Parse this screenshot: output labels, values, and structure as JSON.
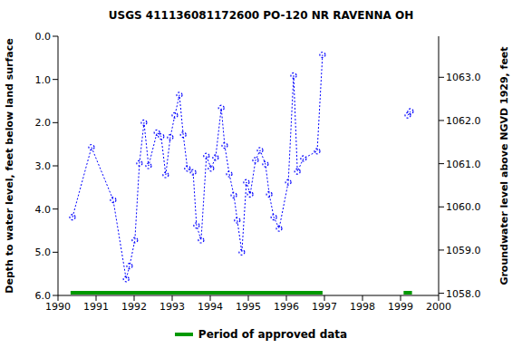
{
  "chart_data": {
    "type": "line",
    "title": "USGS 411136081172600 PO-120 NR RAVENNA OH",
    "y_label": "Depth to water level, feet below land surface",
    "y2_label": "Groundwater level above NGVD 1929, feet",
    "x": [
      1990.38,
      1990.88,
      1991.45,
      1991.79,
      1991.88,
      1992.02,
      1992.14,
      1992.26,
      1992.38,
      1992.6,
      1992.71,
      1992.83,
      1992.95,
      1993.07,
      1993.19,
      1993.29,
      1993.4,
      1993.55,
      1993.64,
      1993.76,
      1993.9,
      1994.02,
      1994.14,
      1994.29,
      1994.38,
      1994.5,
      1994.62,
      1994.71,
      1994.83,
      1994.95,
      1995.05,
      1995.19,
      1995.31,
      1995.45,
      1995.55,
      1995.67,
      1995.81,
      1996.05,
      1996.19,
      1996.29,
      1996.45,
      1996.81,
      1996.95,
      1998.0,
      1999.19,
      1999.26
    ],
    "series": [
      {
        "color": "#0000ff",
        "marker": "circle",
        "line_style": "dotted",
        "values": [
          4.19,
          2.57,
          3.79,
          5.62,
          5.32,
          4.72,
          2.94,
          2.0,
          3.0,
          2.23,
          2.32,
          3.21,
          2.34,
          1.83,
          1.36,
          2.28,
          3.06,
          3.15,
          4.38,
          4.72,
          2.77,
          3.06,
          2.81,
          1.66,
          2.53,
          3.19,
          3.68,
          4.26,
          5.0,
          3.38,
          3.66,
          2.87,
          2.64,
          2.96,
          3.66,
          4.19,
          4.45,
          3.38,
          0.91,
          3.13,
          2.83,
          2.66,
          0.43,
          null,
          1.83,
          1.74
        ]
      }
    ],
    "approved_periods": {
      "label": "Period of approved data",
      "color": "#009900",
      "ranges": [
        [
          1990.33,
          1996.95
        ],
        [
          1999.08,
          1999.3
        ]
      ]
    },
    "xlim": [
      1990,
      2000
    ],
    "xticks": [
      1990,
      1991,
      1992,
      1993,
      1994,
      1995,
      1996,
      1997,
      1998,
      1999,
      2000
    ],
    "ylim": [
      6,
      0
    ],
    "yticks": [
      {
        "value": 0,
        "label": "0.0"
      },
      {
        "value": 1,
        "label": "1.0"
      },
      {
        "value": 2,
        "label": "2.0"
      },
      {
        "value": 3,
        "label": "3.0"
      },
      {
        "value": 4,
        "label": "4.0"
      },
      {
        "value": 5,
        "label": "5.0"
      },
      {
        "value": 6,
        "label": "6.0"
      }
    ],
    "y2lim": [
      1057.95,
      1063.95
    ],
    "y2ticks": [
      {
        "value": 1058,
        "label": "1058.0"
      },
      {
        "value": 1059,
        "label": "1059.0"
      },
      {
        "value": 1060,
        "label": "1060.0"
      },
      {
        "value": 1061,
        "label": "1061.0"
      },
      {
        "value": 1062,
        "label": "1062.0"
      },
      {
        "value": 1063,
        "label": "1063.0"
      }
    ]
  }
}
